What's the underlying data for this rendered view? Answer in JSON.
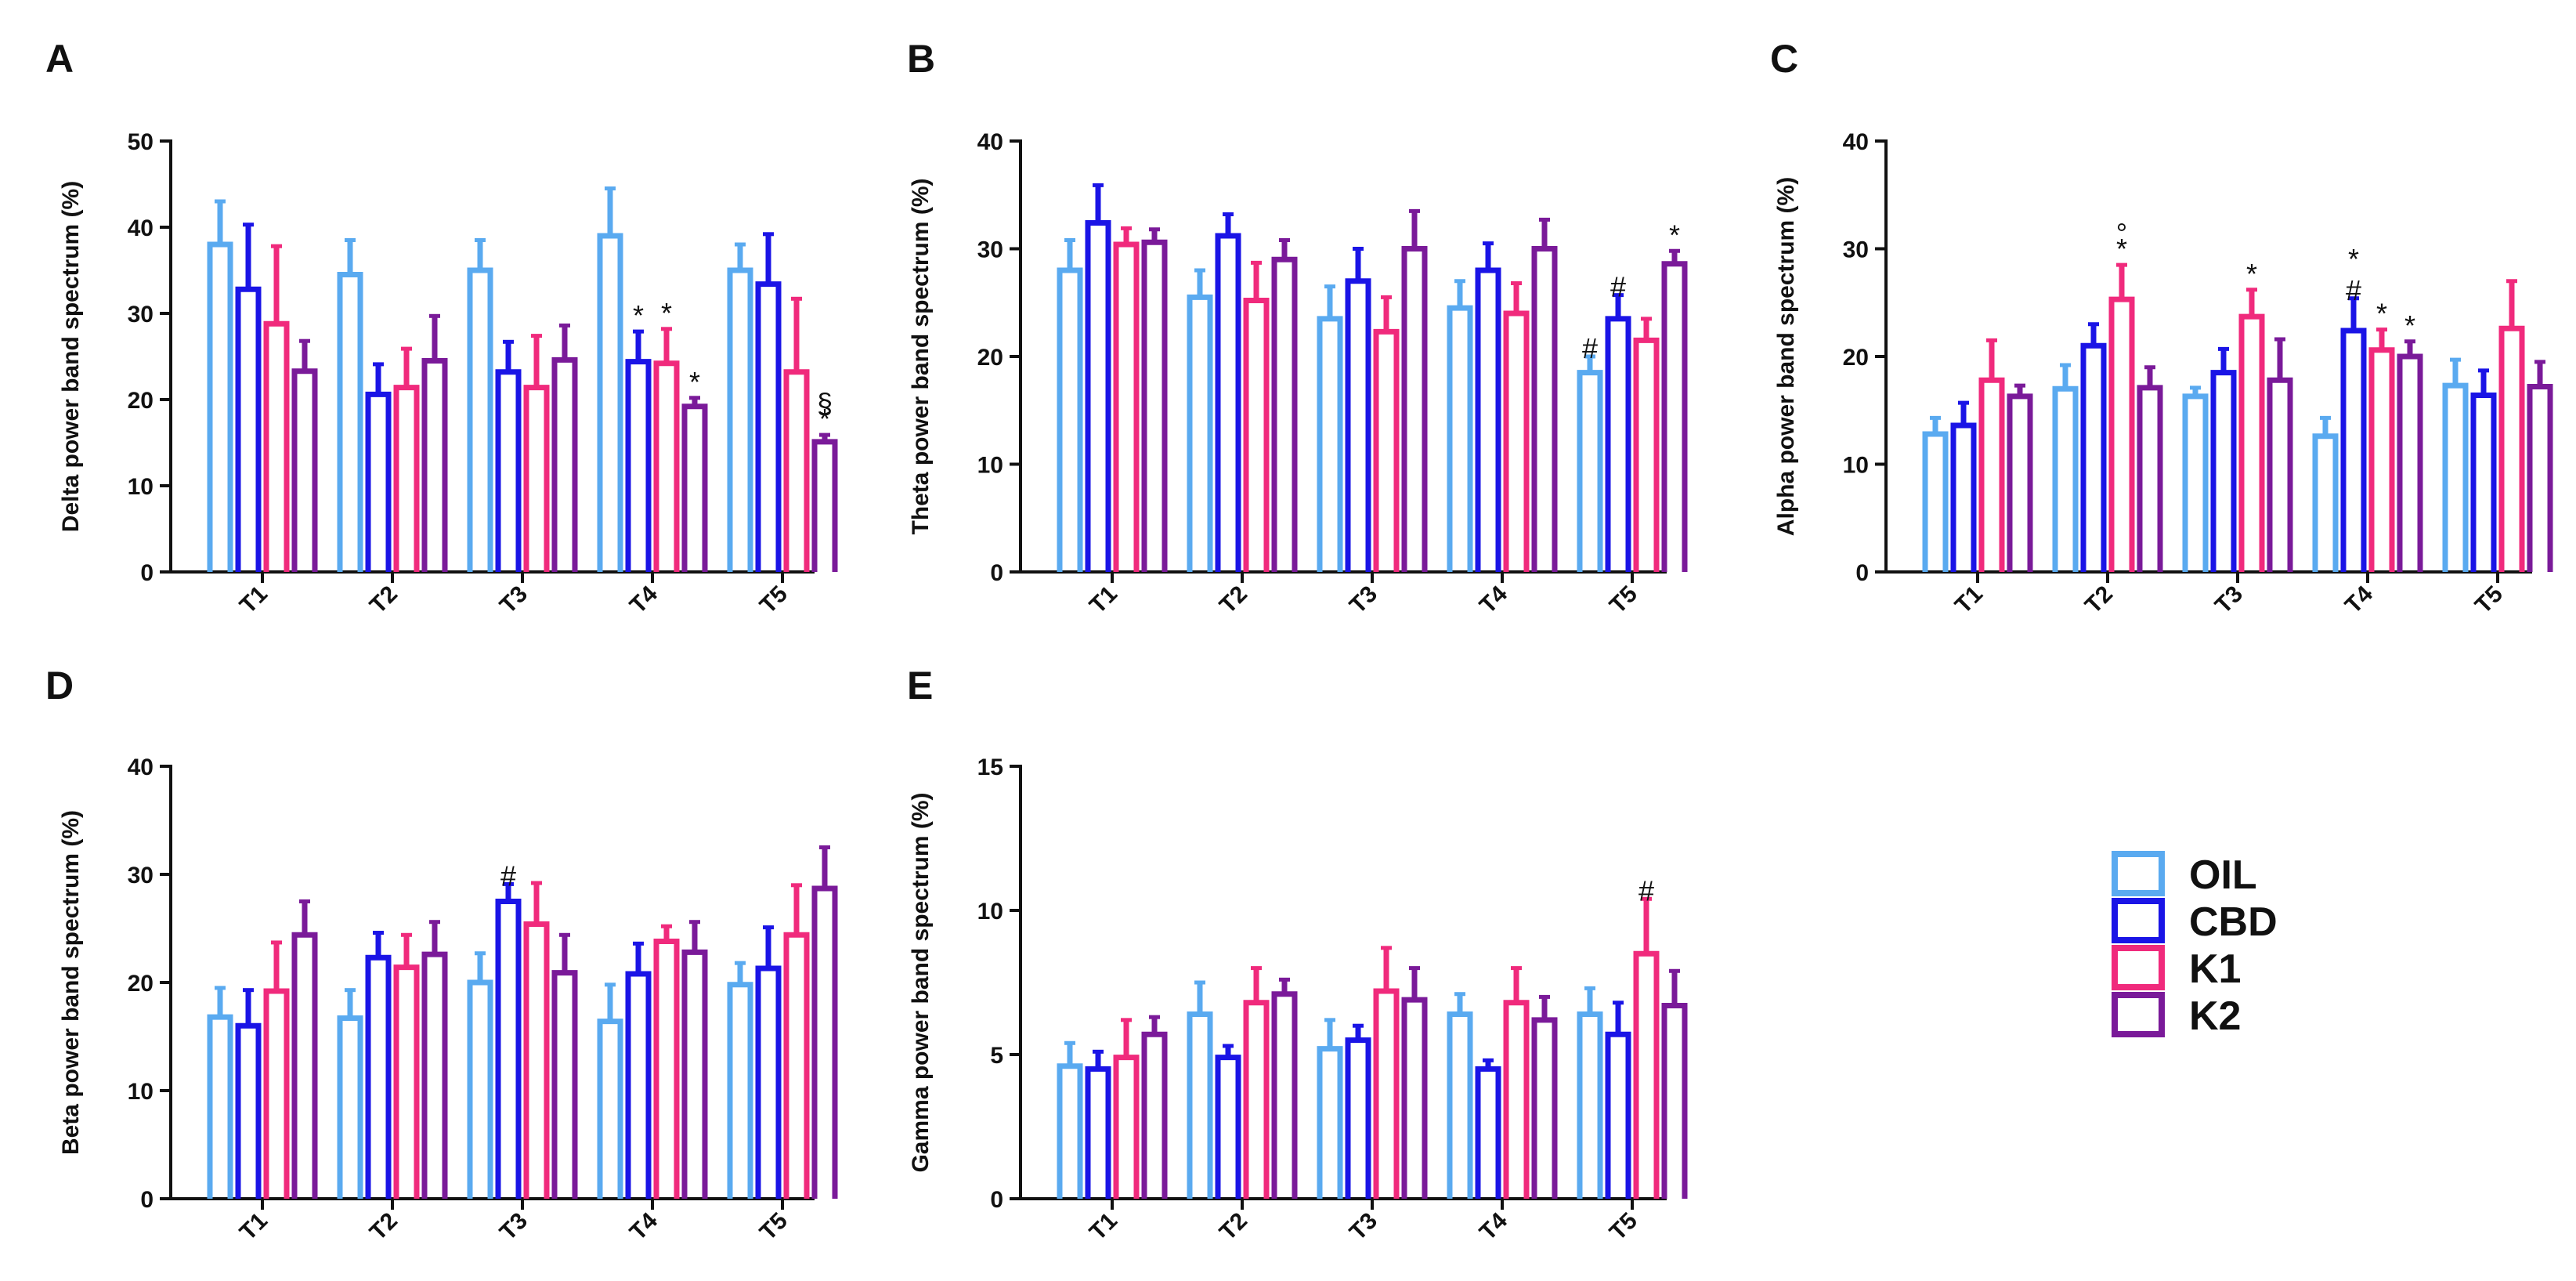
{
  "colors": {
    "OIL": "#5aaaf0",
    "CBD": "#1a14e6",
    "K1": "#f02a7c",
    "K2": "#7a1a99"
  },
  "legend": {
    "items": [
      "OIL",
      "CBD",
      "K1",
      "K2"
    ]
  },
  "chart_data": [
    {
      "panel": "A",
      "type": "bar",
      "ylabel": "Delta power band spectrum (%)",
      "ylim": [
        0,
        50
      ],
      "yticks": [
        "0",
        "10",
        "20",
        "30",
        "40",
        "50"
      ],
      "categories": [
        "T1",
        "T2",
        "T3",
        "T4",
        "T5"
      ],
      "series": [
        {
          "name": "OIL",
          "values": [
            38,
            34.5,
            35,
            39,
            35
          ],
          "errors": [
            5,
            4,
            3.5,
            5.5,
            3
          ]
        },
        {
          "name": "CBD",
          "values": [
            32.8,
            20.6,
            23.2,
            24.4,
            33.4
          ],
          "errors": [
            7.5,
            3.5,
            3.5,
            3.5,
            5.8
          ]
        },
        {
          "name": "K1",
          "values": [
            28.8,
            21.4,
            21.4,
            24.2,
            23.2
          ],
          "errors": [
            9,
            4.5,
            6,
            4,
            8.5
          ]
        },
        {
          "name": "K2",
          "values": [
            23.3,
            24.5,
            24.6,
            19.2,
            15.1
          ],
          "errors": [
            3.5,
            5.2,
            4,
            1,
            0.8
          ]
        }
      ],
      "annotations": [
        {
          "category": "T4",
          "series": "CBD",
          "text": "*"
        },
        {
          "category": "T4",
          "series": "K1",
          "text": "*"
        },
        {
          "category": "T4",
          "series": "K2",
          "text": "*"
        },
        {
          "category": "T5",
          "series": "K2",
          "text": "*"
        },
        {
          "category": "T5",
          "series": "K2",
          "text": "§"
        }
      ]
    },
    {
      "panel": "B",
      "type": "bar",
      "ylabel": "Theta power band spectrum (%)",
      "ylim": [
        0,
        40
      ],
      "yticks": [
        "0",
        "10",
        "20",
        "30",
        "40"
      ],
      "categories": [
        "T1",
        "T2",
        "T3",
        "T4",
        "T5"
      ],
      "series": [
        {
          "name": "OIL",
          "values": [
            28,
            25.5,
            23.5,
            24.5,
            18.5
          ],
          "errors": [
            2.8,
            2.5,
            3,
            2.5,
            1.5
          ]
        },
        {
          "name": "CBD",
          "values": [
            32.4,
            31.2,
            27,
            28,
            23.5
          ],
          "errors": [
            3.5,
            2,
            3,
            2.5,
            2.2
          ]
        },
        {
          "name": "K1",
          "values": [
            30.4,
            25.2,
            22.3,
            24,
            21.5
          ],
          "errors": [
            1.5,
            3.5,
            3.2,
            2.8,
            2
          ]
        },
        {
          "name": "K2",
          "values": [
            30.6,
            29,
            30,
            30,
            28.6
          ],
          "errors": [
            1.2,
            1.8,
            3.5,
            2.7,
            1.2
          ]
        }
      ],
      "annotations": [
        {
          "category": "T5",
          "series": "OIL",
          "text": "#"
        },
        {
          "category": "T5",
          "series": "CBD",
          "text": "#"
        },
        {
          "category": "T5",
          "series": "K2",
          "text": "*"
        }
      ]
    },
    {
      "panel": "C",
      "type": "bar",
      "ylabel": "Alpha power band spectrum (%)",
      "ylim": [
        0,
        40
      ],
      "yticks": [
        "0",
        "10",
        "20",
        "30",
        "40"
      ],
      "categories": [
        "T1",
        "T2",
        "T3",
        "T4",
        "T5"
      ],
      "series": [
        {
          "name": "OIL",
          "values": [
            12.8,
            17,
            16.3,
            12.6,
            17.3
          ],
          "errors": [
            1.5,
            2.2,
            0.8,
            1.7,
            2.4
          ]
        },
        {
          "name": "CBD",
          "values": [
            13.6,
            21,
            18.5,
            22.4,
            16.4
          ],
          "errors": [
            2.1,
            2,
            2.2,
            3,
            2.3
          ]
        },
        {
          "name": "K1",
          "values": [
            17.8,
            25.3,
            23.7,
            20.6,
            22.6
          ],
          "errors": [
            3.7,
            3.2,
            2.5,
            1.9,
            4.4
          ]
        },
        {
          "name": "K2",
          "values": [
            16.3,
            17.1,
            17.8,
            20,
            17.2
          ],
          "errors": [
            1,
            1.9,
            3.8,
            1.4,
            2.3
          ]
        }
      ],
      "annotations": [
        {
          "category": "T2",
          "series": "K1",
          "text": "*"
        },
        {
          "category": "T2",
          "series": "K1",
          "text": "°"
        },
        {
          "category": "T3",
          "series": "K1",
          "text": "*"
        },
        {
          "category": "T4",
          "series": "CBD",
          "text": "#"
        },
        {
          "category": "T4",
          "series": "CBD",
          "text": "*"
        },
        {
          "category": "T4",
          "series": "K1",
          "text": "*"
        },
        {
          "category": "T4",
          "series": "K2",
          "text": "*"
        }
      ]
    },
    {
      "panel": "D",
      "type": "bar",
      "ylabel": "Beta power band spectrum (%)",
      "ylim": [
        0,
        40
      ],
      "yticks": [
        "0",
        "10",
        "20",
        "30",
        "40"
      ],
      "categories": [
        "T1",
        "T2",
        "T3",
        "T4",
        "T5"
      ],
      "series": [
        {
          "name": "OIL",
          "values": [
            16.8,
            16.7,
            20,
            16.4,
            19.8
          ],
          "errors": [
            2.7,
            2.6,
            2.7,
            3.4,
            2
          ]
        },
        {
          "name": "CBD",
          "values": [
            16,
            22.3,
            27.5,
            20.8,
            21.3
          ],
          "errors": [
            3.3,
            2.3,
            1.6,
            2.8,
            3.8
          ]
        },
        {
          "name": "K1",
          "values": [
            19.2,
            21.4,
            25.4,
            23.8,
            24.4
          ],
          "errors": [
            4.5,
            3,
            3.8,
            1.4,
            4.6
          ]
        },
        {
          "name": "K2",
          "values": [
            24.4,
            22.6,
            20.9,
            22.8,
            28.7
          ],
          "errors": [
            3.1,
            3,
            3.5,
            2.8,
            3.8
          ]
        }
      ],
      "annotations": [
        {
          "category": "T3",
          "series": "CBD",
          "text": "#"
        }
      ]
    },
    {
      "panel": "E",
      "type": "bar",
      "ylabel": "Gamma power band spectrum (%)",
      "ylim": [
        0,
        15
      ],
      "yticks": [
        "0",
        "5",
        "10",
        "15"
      ],
      "categories": [
        "T1",
        "T2",
        "T3",
        "T4",
        "T5"
      ],
      "series": [
        {
          "name": "OIL",
          "values": [
            4.6,
            6.4,
            5.2,
            6.4,
            6.4
          ],
          "errors": [
            0.8,
            1.1,
            1,
            0.7,
            0.9
          ]
        },
        {
          "name": "CBD",
          "values": [
            4.5,
            4.9,
            5.5,
            4.5,
            5.7
          ],
          "errors": [
            0.6,
            0.4,
            0.5,
            0.3,
            1.1
          ]
        },
        {
          "name": "K1",
          "values": [
            4.9,
            6.8,
            7.2,
            6.8,
            8.5
          ],
          "errors": [
            1.3,
            1.2,
            1.5,
            1.2,
            1.9
          ]
        },
        {
          "name": "K2",
          "values": [
            5.7,
            7.1,
            6.9,
            6.2,
            6.7
          ],
          "errors": [
            0.6,
            0.5,
            1.1,
            0.8,
            1.2
          ]
        }
      ],
      "annotations": [
        {
          "category": "T5",
          "series": "K1",
          "text": "#"
        }
      ]
    }
  ]
}
